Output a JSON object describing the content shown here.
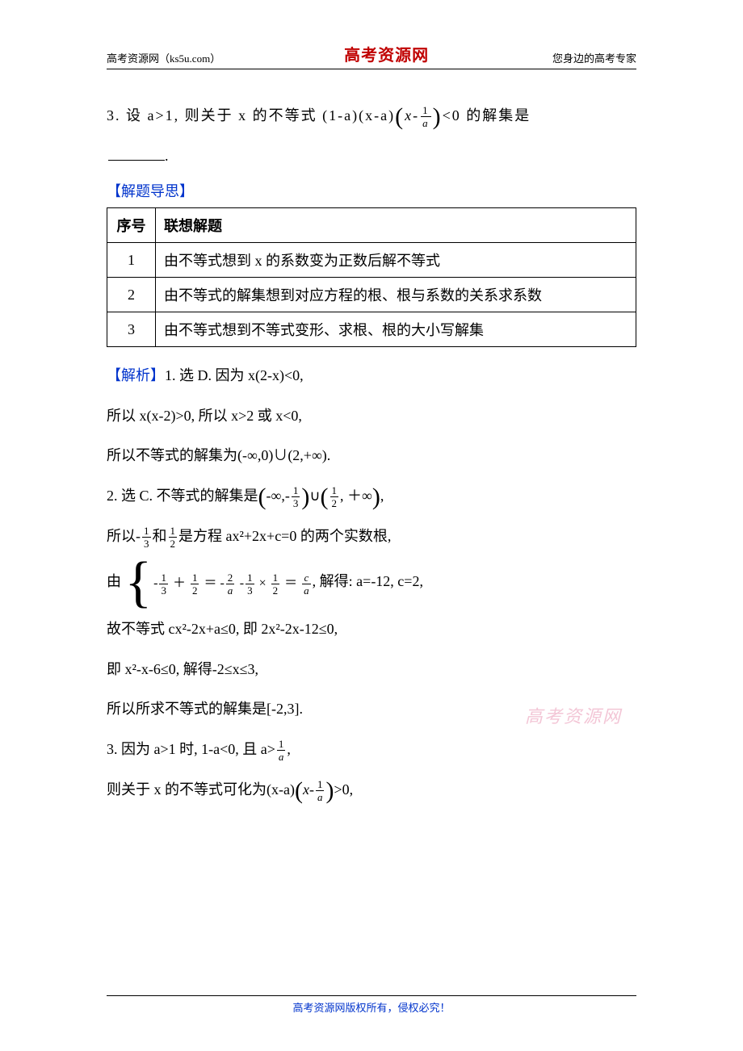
{
  "header": {
    "left": "高考资源网（ks5u.com）",
    "center": "高考资源网",
    "right": "您身边的高考专家"
  },
  "q3": {
    "prefix": "3. 设 a>1, 则关于 x 的不等式 (1-a)(x-a)",
    "paren_inner_var": "x",
    "paren_frac_num": "1",
    "paren_frac_den": "a",
    "suffix": "<0 的解集是",
    "blank_suffix": "."
  },
  "hint_label": "【解题导思】",
  "hint_table": {
    "h1": "序号",
    "h2": "联想解题",
    "rows": [
      {
        "n": "1",
        "t": "由不等式想到 x 的系数变为正数后解不等式"
      },
      {
        "n": "2",
        "t": "由不等式的解集想到对应方程的根、根与系数的关系求系数"
      },
      {
        "n": "3",
        "t": "由不等式想到不等式变形、求根、根的大小写解集"
      }
    ]
  },
  "sol_label": "【解析】",
  "sol1_a": "1. 选 D. 因为 x(2-x)<0,",
  "sol1_b": "所以 x(x-2)>0, 所以 x>2 或 x<0,",
  "sol1_c": "所以不等式的解集为(-∞,0)∪(2,+∞).",
  "sol2_a_pre": "2. 选 C. 不等式的解集是",
  "sol2_a_int1_num": "1",
  "sol2_a_int1_den": "3",
  "sol2_a_int2_num": "1",
  "sol2_a_int2_den": "2",
  "sol2_b_pre": "所以-",
  "sol2_b_f1_num": "1",
  "sol2_b_f1_den": "3",
  "sol2_b_mid": "和",
  "sol2_b_f2_num": "1",
  "sol2_b_f2_den": "2",
  "sol2_b_post": "是方程 ax²+2x+c=0 的两个实数根,",
  "sol2_sys_pre": "由",
  "sys_r1": {
    "a_num": "1",
    "a_den": "3",
    "b_num": "1",
    "b_den": "2",
    "c_num": "2",
    "c_den": "a"
  },
  "sys_r2": {
    "a_num": "1",
    "a_den": "3",
    "b_num": "1",
    "b_den": "2",
    "c_num": "c",
    "c_den": "a"
  },
  "sol2_sys_post": ", 解得: a=-12, c=2,",
  "sol2_d": "故不等式 cx²-2x+a≤0, 即 2x²-2x-12≤0,",
  "sol2_e": "即 x²-x-6≤0, 解得-2≤x≤3,",
  "sol2_f": "所以所求不等式的解集是[-2,3].",
  "sol3_a_pre": "3. 因为 a>1 时, 1-a<0, 且 a>",
  "sol3_a_frac_num": "1",
  "sol3_a_frac_den": "a",
  "sol3_a_post": ",",
  "sol3_b_pre": "则关于 x 的不等式可化为(x-a)",
  "sol3_b_var": "x",
  "sol3_b_frac_num": "1",
  "sol3_b_frac_den": "a",
  "sol3_b_post": ">0,",
  "watermark": "高考资源网",
  "footer": "高考资源网版权所有，侵权必究！",
  "colors": {
    "accent_blue": "#0033cc",
    "accent_red": "#c00000",
    "watermark": "#f3c6d6",
    "text": "#000000",
    "bg": "#ffffff"
  }
}
